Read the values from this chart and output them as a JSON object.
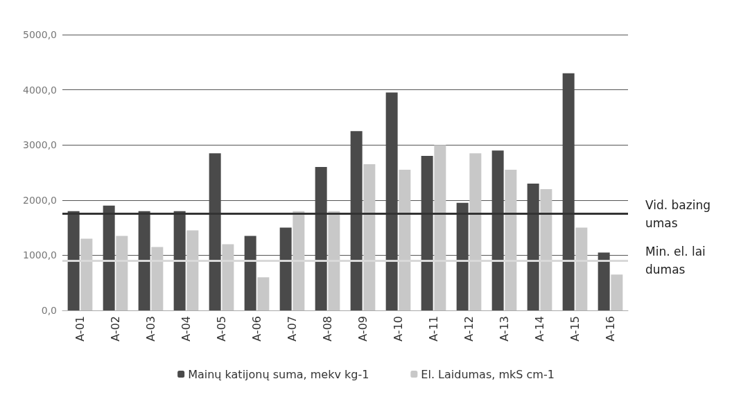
{
  "chart_data": {
    "type": "bar",
    "categories": [
      "A-01",
      "A-02",
      "A-03",
      "A-04",
      "A-05",
      "A-06",
      "A-07",
      "A-08",
      "A-09",
      "A-10",
      "A-11",
      "A-12",
      "A-13",
      "A-14",
      "A-15",
      "A-16"
    ],
    "series": [
      {
        "name": "Mainų katijonų suma, mekv kg-1",
        "color": "#4a4a4a",
        "values": [
          1800,
          1900,
          1800,
          1800,
          2850,
          1350,
          1500,
          2600,
          3250,
          3950,
          2800,
          1950,
          2900,
          2300,
          4300,
          1050
        ]
      },
      {
        "name": "El. Laidumas, mkS cm-1",
        "color": "#c8c8c8",
        "values": [
          1300,
          1350,
          1150,
          1450,
          1200,
          600,
          1800,
          1800,
          2650,
          2550,
          3000,
          2850,
          2550,
          2200,
          1500,
          650
        ]
      }
    ],
    "ylim": [
      0,
      5000
    ],
    "yticks": [
      {
        "value": 0,
        "label": "0,0"
      },
      {
        "value": 1000,
        "label": "1000,0"
      },
      {
        "value": 2000,
        "label": "2000,0"
      },
      {
        "value": 3000,
        "label": "3000,0"
      },
      {
        "value": 4000,
        "label": "4000,0"
      },
      {
        "value": 5000,
        "label": "5000,0"
      }
    ],
    "ref_lines": [
      {
        "axis": "y",
        "value": 1750,
        "label": "Vid. bazingumas",
        "color": "#333333"
      },
      {
        "axis": "y",
        "value": 900,
        "label": "Min. el. laidumas",
        "color": "#d9d9d9"
      }
    ],
    "grid": "y",
    "legend": "bottom"
  }
}
